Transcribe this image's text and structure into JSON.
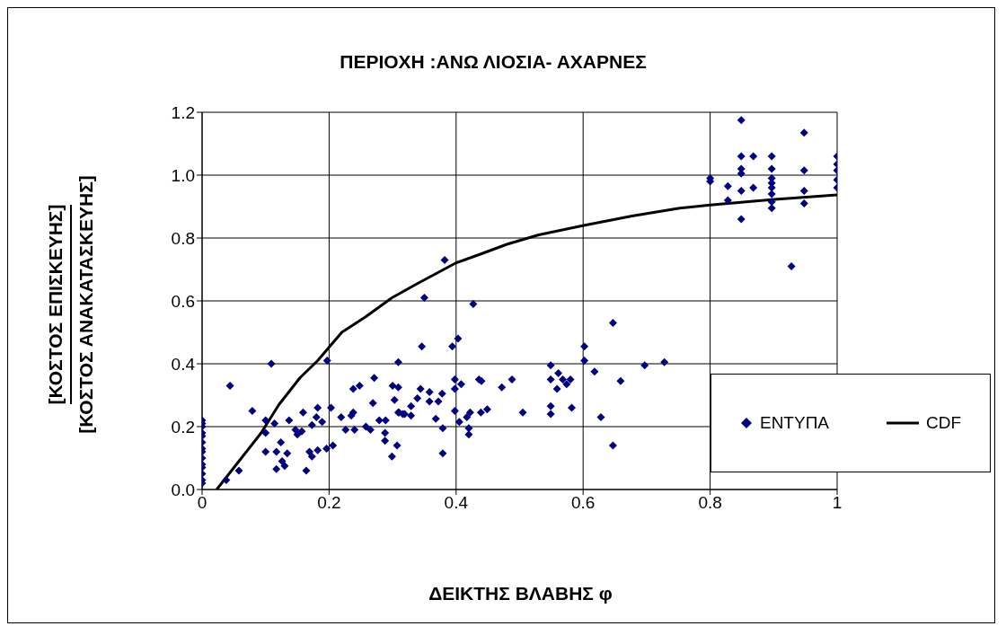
{
  "chart_data": {
    "type": "scatter",
    "title": "ΠΕΡΙΟΧΗ :ΑΝΩ ΛΙΟΣΙΑ- ΑΧΑΡΝΕΣ",
    "xlabel": "ΔΕΙΚΤΗΣ ΒΛΑΒΗΣ φ",
    "ylabel": "[ΚΟΣΤΟΣ ΕΠΙΣΚΕΥΗΣ]\n[ΚΟΣΤΟΣ ΑΝΑΚΑΤΑΣΚΕΥΗΣ]",
    "xlim": [
      0,
      1
    ],
    "xticks": [
      0,
      0.2,
      0.4,
      0.6,
      0.8,
      1
    ],
    "ylim": [
      0,
      1.2
    ],
    "yticks": [
      {
        "value": 0,
        "label": "0.0"
      },
      0.2,
      0.4,
      0.6,
      0.8,
      {
        "value": 1,
        "label": "1.0"
      },
      1.2
    ],
    "grid": true,
    "legend": "right",
    "series": [
      {
        "name": "ΕΝΤΥΠΑ",
        "marker": "diamond",
        "color": "#000080",
        "x": [
          0,
          0,
          0,
          0,
          0,
          0,
          0,
          0,
          0,
          0,
          0,
          0,
          0,
          0,
          0.038,
          0.058,
          0.044,
          0.109,
          0.079,
          0.1,
          0.114,
          0.1,
          0.1,
          0.117,
          0.124,
          0.134,
          0.126,
          0.117,
          0.13,
          0.137,
          0.147,
          0.15,
          0.157,
          0.159,
          0.164,
          0.169,
          0.173,
          0.182,
          0.173,
          0.18,
          0.182,
          0.189,
          0.196,
          0.206,
          0.197,
          0.203,
          0.219,
          0.226,
          0.235,
          0.238,
          0.24,
          0.238,
          0.248,
          0.258,
          0.265,
          0.269,
          0.271,
          0.279,
          0.289,
          0.288,
          0.288,
          0.299,
          0.307,
          0.309,
          0.3,
          0.303,
          0.309,
          0.316,
          0.382,
          0.35,
          0.427,
          0.346,
          0.394,
          0.403,
          0.309,
          0.31,
          0.319,
          0.329,
          0.329,
          0.339,
          0.344,
          0.358,
          0.358,
          0.372,
          0.378,
          0.368,
          0.379,
          0.379,
          0.398,
          0.398,
          0.408,
          0.398,
          0.405,
          0.417,
          0.422,
          0.42,
          0.42,
          0.436,
          0.44,
          0.439,
          0.449,
          0.472,
          0.488,
          0.505,
          0.549,
          0.549,
          0.559,
          0.561,
          0.568,
          0.574,
          0.58,
          0.549,
          0.549,
          0.582,
          0.602,
          0.602,
          0.618,
          0.647,
          0.659,
          0.628,
          0.647,
          0.697,
          0.728,
          0.8,
          0.8,
          0.828,
          0.828,
          0.849,
          0.849,
          0.849,
          0.849,
          0.849,
          0.849,
          0.868,
          0.868,
          0.897,
          0.897,
          0.897,
          0.897,
          0.897,
          0.897,
          0.897,
          0.897,
          0.948,
          0.948,
          0.948,
          0.948,
          0.928,
          1,
          1,
          1,
          1,
          1
        ],
        "values": [
          0.02,
          0.03,
          0.05,
          0.07,
          0.08,
          0.1,
          0.12,
          0.13,
          0.15,
          0.17,
          0.18,
          0.2,
          0.21,
          0.22,
          0.03,
          0.06,
          0.33,
          0.4,
          0.25,
          0.22,
          0.21,
          0.18,
          0.12,
          0.12,
          0.15,
          0.115,
          0.09,
          0.065,
          0.075,
          0.22,
          0.19,
          0.175,
          0.185,
          0.245,
          0.06,
          0.12,
          0.105,
          0.125,
          0.205,
          0.23,
          0.26,
          0.215,
          0.13,
          0.14,
          0.41,
          0.26,
          0.23,
          0.19,
          0.235,
          0.245,
          0.19,
          0.32,
          0.33,
          0.2,
          0.19,
          0.275,
          0.355,
          0.22,
          0.22,
          0.18,
          0.155,
          0.105,
          0.14,
          0.405,
          0.33,
          0.285,
          0.245,
          0.24,
          0.73,
          0.61,
          0.59,
          0.455,
          0.455,
          0.48,
          0.325,
          0.245,
          0.24,
          0.265,
          0.235,
          0.29,
          0.32,
          0.31,
          0.28,
          0.28,
          0.305,
          0.225,
          0.195,
          0.115,
          0.35,
          0.32,
          0.335,
          0.25,
          0.215,
          0.23,
          0.245,
          0.195,
          0.175,
          0.35,
          0.345,
          0.245,
          0.255,
          0.325,
          0.35,
          0.245,
          0.395,
          0.35,
          0.32,
          0.37,
          0.35,
          0.335,
          0.35,
          0.265,
          0.24,
          0.26,
          0.455,
          0.41,
          0.375,
          0.53,
          0.345,
          0.23,
          0.14,
          0.395,
          0.405,
          0.99,
          0.98,
          0.965,
          0.92,
          1.175,
          1.06,
          1.02,
          1.005,
          0.95,
          0.86,
          1.06,
          0.96,
          1.06,
          1.02,
          0.99,
          0.975,
          0.96,
          0.94,
          0.915,
          0.895,
          1.135,
          1.015,
          0.95,
          0.91,
          0.71,
          1.06,
          1.035,
          1.015,
          0.985,
          0.96
        ]
      },
      {
        "name": "CDF",
        "type": "line",
        "marker": "none",
        "line_style": "solid",
        "color": "#000000",
        "x": [
          0.023,
          0.058,
          0.093,
          0.121,
          0.154,
          0.182,
          0.22,
          0.258,
          0.299,
          0.339,
          0.399,
          0.44,
          0.48,
          0.53,
          0.601,
          0.677,
          0.752,
          0.8,
          0.897,
          1
        ],
        "values": [
          0,
          0.09,
          0.18,
          0.27,
          0.355,
          0.41,
          0.5,
          0.55,
          0.61,
          0.655,
          0.72,
          0.75,
          0.78,
          0.81,
          0.84,
          0.87,
          0.895,
          0.905,
          0.922,
          0.937
        ]
      }
    ]
  }
}
